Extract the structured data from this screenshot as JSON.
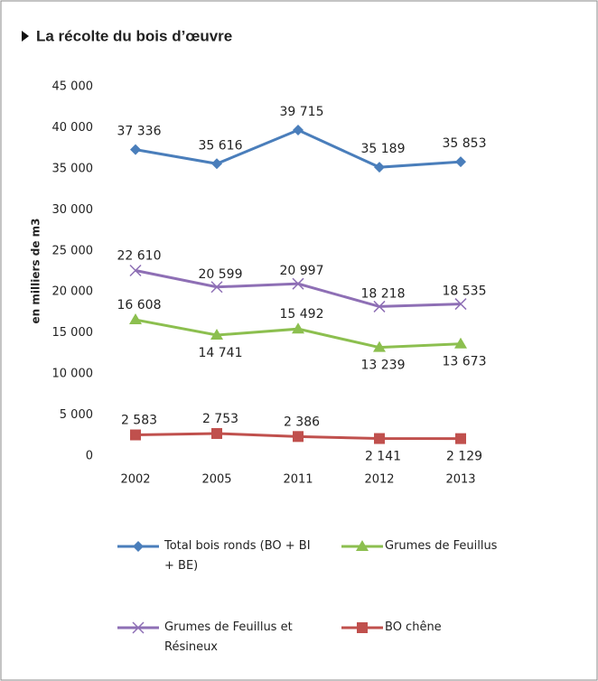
{
  "chart_data": {
    "type": "line",
    "title": "La récolte du bois d’œuvre",
    "y_label": "en milliers de m3",
    "categories": [
      "2002",
      "2005",
      "2011",
      "2012",
      "2013"
    ],
    "series": [
      {
        "name": "Total bois ronds (BO + BI + BE)",
        "color": "#4a7ebb",
        "marker": "diamond",
        "values": [
          37336,
          35616,
          39715,
          35189,
          35853
        ],
        "value_labels": [
          "37 336",
          "35 616",
          "39 715",
          "35 189",
          "35 853"
        ]
      },
      {
        "name": "Grumes de Feuillus",
        "color": "#8cbf4f",
        "marker": "triangle",
        "values": [
          16608,
          14741,
          15492,
          13239,
          13673
        ],
        "value_labels": [
          "16 608",
          "14 741",
          "15 492",
          "13 239",
          "13 673"
        ]
      },
      {
        "name": "Grumes de Feuillus et Résineux",
        "color": "#8e6fb5",
        "marker": "x",
        "values": [
          22610,
          20599,
          20997,
          18218,
          18535
        ],
        "value_labels": [
          "22 610",
          "20 599",
          "20 997",
          "18 218",
          "18 535"
        ]
      },
      {
        "name": "BO chêne",
        "color": "#c0504d",
        "marker": "square",
        "values": [
          2583,
          2753,
          2386,
          2141,
          2129
        ],
        "value_labels": [
          "2 583",
          "2 753",
          "2 386",
          "2 141",
          "2 129"
        ]
      }
    ],
    "ylim": [
      0,
      45000
    ],
    "yticks": [
      0,
      {
        "value": 5000,
        "label": "5 000"
      },
      {
        "value": 10000,
        "label": "10 000"
      },
      {
        "value": 15000,
        "label": "15 000"
      },
      {
        "value": 20000,
        "label": "20 000"
      },
      {
        "value": 25000,
        "label": "25 000"
      },
      {
        "value": 30000,
        "label": "30 000"
      },
      {
        "value": 35000,
        "label": "35 000"
      },
      {
        "value": 40000,
        "label": "40 000"
      },
      {
        "value": 45000,
        "label": "45 000"
      }
    ],
    "grid": false
  }
}
